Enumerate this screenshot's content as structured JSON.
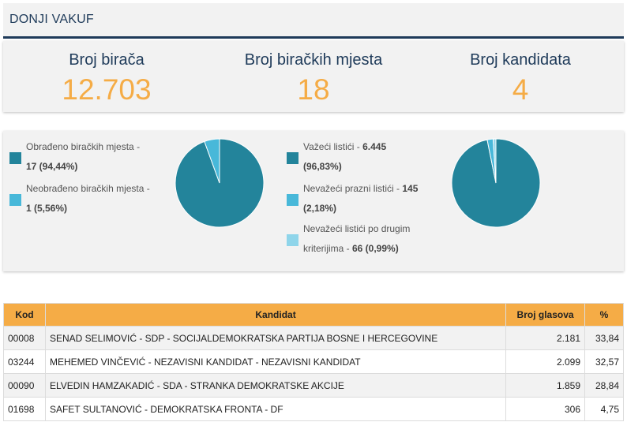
{
  "header": {
    "title": "DONJI VAKUF"
  },
  "stats": [
    {
      "label": "Broj birača",
      "value": "12.703"
    },
    {
      "label": "Broj biračkih mjesta",
      "value": "18"
    },
    {
      "label": "Broj kandidata",
      "value": "4"
    }
  ],
  "colors": {
    "dark": "#23849b",
    "light": "#48b8d9",
    "pale": "#8fd5ea",
    "accent": "#f5ac46",
    "navy": "#1f3b5a"
  },
  "chart_data": [
    {
      "type": "pie",
      "series": [
        {
          "name": "Obrađeno biračkih mjesta",
          "value": 17,
          "percent": 94.44
        },
        {
          "name": "Neobrađeno biračkih mjesta",
          "value": 1,
          "percent": 5.56
        }
      ]
    },
    {
      "type": "pie",
      "series": [
        {
          "name": "Važeći listići",
          "value": 6445,
          "percent": 96.83
        },
        {
          "name": "Nevažeći prazni listići",
          "value": 145,
          "percent": 2.18
        },
        {
          "name": "Nevažeći listići po drugim kriterijima",
          "value": 66,
          "percent": 0.99
        }
      ]
    }
  ],
  "legend1": [
    {
      "line1": "Obrađeno biračkih mjesta -",
      "line2_bold": "17 (94,44%)",
      "line2_rest": ""
    },
    {
      "line1": "Neobrađeno biračkih mjesta -",
      "line2_bold": "1 (5,56%)",
      "line2_rest": ""
    }
  ],
  "legend2": [
    {
      "line1_text": "Važeći listići - ",
      "line1_bold": "6.445",
      "line2_bold": "(96,83%)",
      "line2_rest": ""
    },
    {
      "line1_text": "Nevažeći prazni listići - ",
      "line1_bold": "145",
      "line2_bold": "(2,18%)",
      "line2_rest": ""
    },
    {
      "line1_text": "Nevažeći listići po drugim",
      "line1_bold": "",
      "line2_rest": "kriterijima - ",
      "line2_bold": "66 (0,99%)"
    }
  ],
  "table": {
    "headers": {
      "code": "Kod",
      "candidate": "Kandidat",
      "votes": "Broj glasova",
      "percent": "%"
    },
    "rows": [
      {
        "code": "00008",
        "candidate": "SENAD SELIMOVIĆ - SDP - SOCIJALDEMOKRATSKA PARTIJA BOSNE I HERCEGOVINE",
        "votes": "2.181",
        "percent": "33,84"
      },
      {
        "code": "03244",
        "candidate": "MEHEMED VINČEVIĆ - NEZAVISNI KANDIDAT - NEZAVISNI KANDIDAT",
        "votes": "2.099",
        "percent": "32,57"
      },
      {
        "code": "00090",
        "candidate": "ELVEDIN HAMZAKADIĆ - SDA - STRANKA DEMOKRATSKE AKCIJE",
        "votes": "1.859",
        "percent": "28,84"
      },
      {
        "code": "01698",
        "candidate": "SAFET SULTANOVIĆ - DEMOKRATSKA FRONTA - DF",
        "votes": "306",
        "percent": "4,75"
      }
    ]
  }
}
